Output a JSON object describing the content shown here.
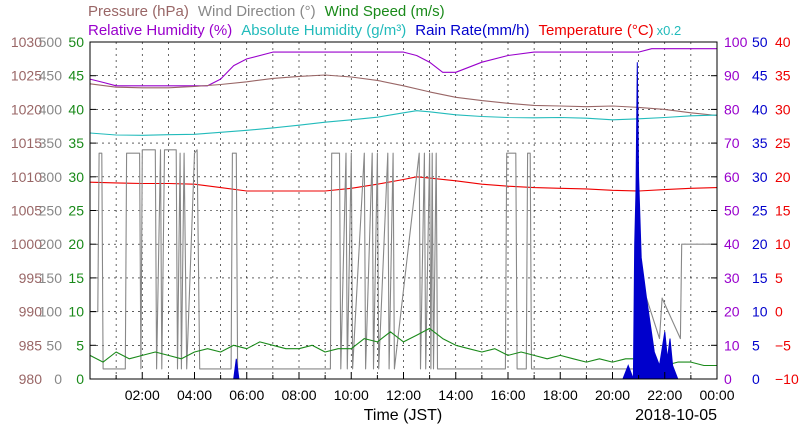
{
  "chart_data": {
    "type": "line",
    "date": "2018-10-05",
    "xlabel": "Time (JST)",
    "x_tick_labels": [
      "02:00",
      "04:00",
      "06:00",
      "08:00",
      "10:00",
      "12:00",
      "14:00",
      "16:00",
      "18:00",
      "20:00",
      "22:00",
      "00:00"
    ],
    "xlim_hours": [
      0,
      24
    ],
    "grid": true,
    "legend_row1": [
      {
        "key": "pressure",
        "label": "Pressure (hPa)",
        "color": "#996666"
      },
      {
        "key": "wind_dir",
        "label": "Wind Direction (°)",
        "color": "#888888"
      },
      {
        "key": "wind_speed",
        "label": "Wind Speed (m/s)",
        "color": "#1a8a1a"
      }
    ],
    "legend_row2": [
      {
        "key": "rh",
        "label": "Relative Humidity (%)",
        "color": "#9900cc"
      },
      {
        "key": "ah",
        "label": "Absolute Humidity (g/m³)",
        "color": "#22bbbb"
      },
      {
        "key": "rain",
        "label": "Rain Rate(mm/h)",
        "color": "#0000cc"
      },
      {
        "key": "temp",
        "label": "Temperature (°C)",
        "color": "#ee0000"
      }
    ],
    "ah_scale_note": "x0.2",
    "axes": {
      "pressure": {
        "min": 980,
        "max": 1030,
        "ticks": [
          "980",
          "985",
          "990",
          "995",
          "1000",
          "1005",
          "1010",
          "1015",
          "1020",
          "1025",
          "1030"
        ],
        "color": "#996666"
      },
      "wind_dir": {
        "min": 0,
        "max": 500,
        "ticks": [
          "0",
          "50",
          "100",
          "150",
          "200",
          "250",
          "300",
          "350",
          "400",
          "450",
          "500"
        ],
        "color": "#888888"
      },
      "wind_speed": {
        "min": 0,
        "max": 50,
        "ticks": [
          "0",
          "5",
          "10",
          "15",
          "20",
          "25",
          "30",
          "35",
          "40",
          "45",
          "50"
        ],
        "color": "#1a8a1a"
      },
      "rh": {
        "min": 0,
        "max": 100,
        "ticks": [
          "0",
          "10",
          "20",
          "30",
          "40",
          "50",
          "60",
          "70",
          "80",
          "90",
          "100"
        ],
        "color": "#9900cc"
      },
      "rain": {
        "min": 0,
        "max": 50,
        "ticks": [
          "0",
          "5",
          "10",
          "15",
          "20",
          "25",
          "30",
          "35",
          "40",
          "45",
          "50"
        ],
        "color": "#0000cc"
      },
      "temp": {
        "min": -10,
        "max": 40,
        "ticks": [
          "−10",
          "−5",
          "0",
          "5",
          "10",
          "15",
          "20",
          "25",
          "30",
          "35",
          "40"
        ],
        "color": "#ee0000"
      }
    },
    "series": [
      {
        "name": "Relative Humidity (%)",
        "axis": "rh",
        "color": "#9900cc",
        "x": [
          0,
          0.5,
          1,
          2,
          3,
          4,
          4.5,
          5,
          5.5,
          6,
          7,
          8,
          9,
          10,
          11,
          12,
          12.5,
          13,
          13.5,
          14,
          15,
          16,
          17,
          18,
          19,
          20,
          21,
          21.5,
          22,
          23,
          24
        ],
        "y": [
          89,
          88,
          87,
          87,
          87,
          87,
          87,
          89,
          93,
          95,
          97,
          97,
          97,
          97,
          97,
          97,
          96,
          94,
          91,
          91,
          94,
          96,
          97,
          97,
          97,
          97,
          97,
          98,
          98,
          98,
          98
        ]
      },
      {
        "name": "Pressure (hPa)",
        "axis": "pressure",
        "color": "#996666",
        "x": [
          0,
          1,
          2,
          3,
          4,
          5,
          6,
          7,
          8,
          9,
          10,
          11,
          12,
          13,
          14,
          15,
          16,
          17,
          18,
          19,
          20,
          21,
          22,
          23,
          24
        ],
        "y": [
          1023.8,
          1023.3,
          1023.2,
          1023.2,
          1023.4,
          1023.7,
          1024.1,
          1024.6,
          1024.9,
          1025.1,
          1024.8,
          1024.3,
          1023.5,
          1022.6,
          1021.8,
          1021.3,
          1020.9,
          1020.6,
          1020.5,
          1020.4,
          1020.5,
          1020.3,
          1020.0,
          1019.5,
          1019.1
        ]
      },
      {
        "name": "Absolute Humidity",
        "axis": "rh",
        "color": "#22bbbb",
        "x": [
          0,
          1,
          2,
          3,
          4,
          5,
          6,
          7,
          8,
          9,
          10,
          11,
          12,
          12.5,
          13,
          14,
          15,
          16,
          17,
          18,
          19,
          20,
          21,
          22,
          23,
          24
        ],
        "y": [
          73.0,
          72.4,
          72.3,
          72.5,
          72.6,
          73.2,
          73.8,
          74.5,
          75.3,
          76.2,
          76.9,
          77.7,
          79.0,
          79.6,
          79.3,
          78.4,
          77.9,
          77.6,
          77.5,
          77.6,
          77.4,
          76.9,
          77.2,
          77.6,
          78.1,
          78.3
        ]
      },
      {
        "name": "Temperature (°C)",
        "axis": "temp",
        "color": "#ee0000",
        "x": [
          0,
          1,
          2,
          3,
          4,
          5,
          6,
          7,
          8,
          9,
          10,
          11,
          12,
          12.5,
          13,
          14,
          15,
          16,
          17,
          18,
          19,
          20,
          21,
          22,
          23,
          24
        ],
        "y": [
          19.2,
          19.1,
          19.0,
          19.0,
          18.9,
          18.4,
          17.9,
          17.9,
          17.9,
          17.9,
          18.3,
          18.9,
          19.6,
          20.0,
          19.8,
          19.4,
          18.9,
          18.6,
          18.4,
          18.3,
          18.2,
          18.0,
          17.9,
          18.1,
          18.3,
          18.4
        ]
      },
      {
        "name": "Wind Direction (°)",
        "axis": "wind_dir",
        "color": "#888888",
        "x": [
          0,
          0.3,
          0.35,
          0.45,
          0.5,
          1.35,
          1.4,
          1.9,
          1.95,
          2.0,
          2.1,
          2.5,
          2.55,
          2.7,
          2.75,
          2.85,
          3.3,
          3.35,
          3.45,
          3.5,
          3.6,
          3.7,
          4.0,
          4.1,
          4.2,
          5.4,
          5.45,
          5.6,
          5.65,
          9.2,
          9.25,
          9.55,
          9.6,
          9.8,
          9.85,
          10.0,
          10.05,
          10.5,
          10.55,
          10.8,
          10.85,
          11.0,
          11.05,
          11.4,
          11.45,
          11.6,
          11.65,
          12.6,
          12.65,
          12.8,
          12.85,
          13.0,
          13.05,
          13.1,
          13.15,
          13.25,
          13.3,
          15.9,
          15.95,
          16.3,
          16.35,
          16.7,
          16.75,
          16.85,
          16.9,
          21.0,
          21.1,
          21.2,
          21.3,
          21.8,
          21.9,
          22.6,
          22.65,
          23.5,
          24
        ],
        "y": [
          100,
          100,
          335,
          335,
          15,
          15,
          335,
          335,
          15,
          340,
          340,
          340,
          15,
          340,
          15,
          340,
          340,
          15,
          335,
          15,
          335,
          15,
          335,
          340,
          15,
          15,
          335,
          335,
          15,
          15,
          335,
          335,
          15,
          335,
          15,
          335,
          15,
          335,
          15,
          335,
          15,
          335,
          15,
          335,
          15,
          335,
          15,
          335,
          15,
          335,
          15,
          335,
          15,
          335,
          15,
          335,
          15,
          15,
          335,
          335,
          15,
          15,
          335,
          335,
          15,
          15,
          120,
          60,
          120,
          60,
          120,
          60,
          200,
          200,
          200
        ]
      },
      {
        "name": "Wind Speed (m/s)",
        "axis": "wind_speed",
        "color": "#1a8a1a",
        "x": [
          0,
          0.5,
          1,
          1.5,
          2,
          2.5,
          3,
          3.5,
          4,
          4.5,
          5,
          5.5,
          6,
          6.5,
          7,
          7.5,
          8,
          8.5,
          9,
          9.5,
          10,
          10.5,
          11,
          11.5,
          12,
          12.5,
          13,
          13.5,
          14,
          14.5,
          15,
          15.5,
          16,
          16.5,
          17,
          17.5,
          18,
          18.5,
          19,
          19.5,
          20,
          20.5,
          21,
          21.5,
          22,
          22.5,
          23,
          23.5,
          24
        ],
        "y": [
          3.5,
          2.5,
          4,
          3,
          3.5,
          4,
          3.5,
          3,
          4,
          4.5,
          4,
          5,
          4.5,
          5.5,
          5,
          4.5,
          4.5,
          5,
          4,
          4.5,
          4.5,
          6,
          5.5,
          7,
          5.5,
          6.5,
          7.5,
          6,
          5,
          4.5,
          4,
          4.5,
          3.5,
          4,
          3.5,
          3,
          3.5,
          3,
          2.5,
          3,
          2.5,
          3,
          3,
          2.5,
          2,
          2.5,
          2.5,
          2,
          2
        ]
      },
      {
        "name": "Rain Rate(mm/h)",
        "axis": "rain",
        "color": "#0000cc",
        "fill": true,
        "x": [
          0,
          5.5,
          5.6,
          5.7,
          6.0,
          6.5,
          7.0,
          7.5,
          8.0,
          8.5,
          9.0,
          9.5,
          10.0,
          10.5,
          11.0,
          11.5,
          12.0,
          12.5,
          13.0,
          13.5,
          14.0,
          14.5,
          15.0,
          15.5,
          16.0,
          16.5,
          17.0,
          17.5,
          18.0,
          18.5,
          19.0,
          19.5,
          20.0,
          20.4,
          20.6,
          20.8,
          20.85,
          20.9,
          20.95,
          21.0,
          21.1,
          21.2,
          21.3,
          21.45,
          21.6,
          21.8,
          22.0,
          22.1,
          22.2,
          22.3,
          22.5,
          24
        ],
        "y": [
          0,
          0,
          3,
          0,
          0,
          0,
          0,
          0,
          0,
          0,
          0,
          0,
          0,
          0,
          0,
          0,
          0,
          0,
          0,
          0,
          0,
          0,
          0,
          0,
          0,
          0,
          0,
          0,
          0,
          0,
          0,
          0,
          0,
          0,
          2,
          0,
          20,
          28,
          47,
          30,
          18,
          15,
          12,
          8,
          4,
          2,
          7,
          3,
          6,
          2,
          0,
          0
        ]
      }
    ]
  }
}
